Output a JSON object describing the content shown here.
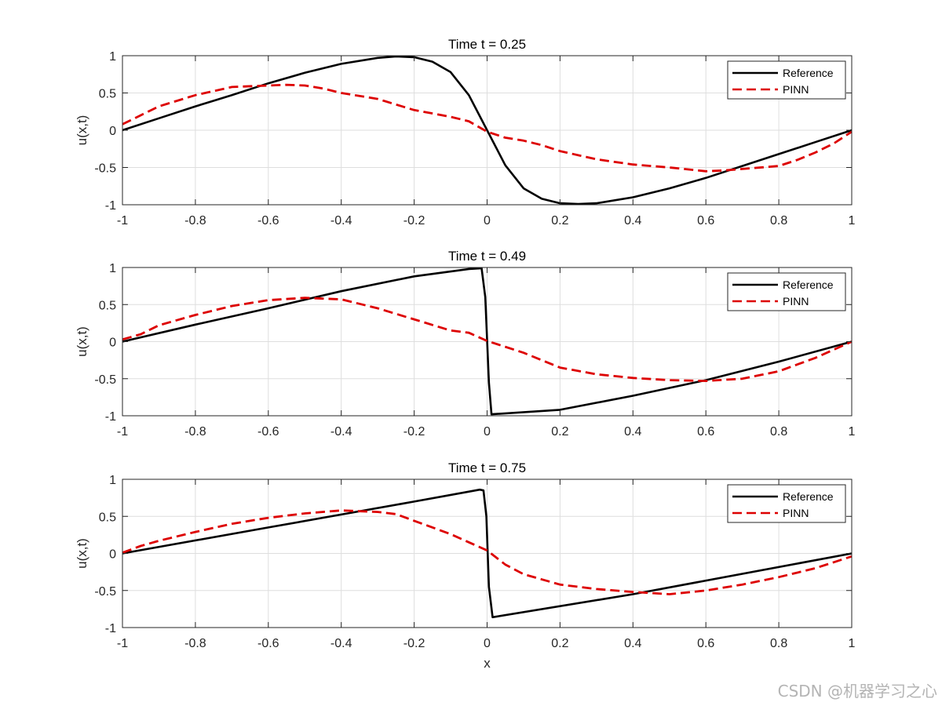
{
  "chart_data": [
    {
      "type": "line",
      "title": "Time t = 0.25",
      "xlabel": "",
      "ylabel": "u(x,t)",
      "xlim": [
        -1,
        1
      ],
      "ylim": [
        -1,
        1
      ],
      "xticks": [
        -1,
        -0.8,
        -0.6,
        -0.4,
        -0.2,
        0,
        0.2,
        0.4,
        0.6,
        0.8,
        1
      ],
      "xtick_labels": [
        "-1",
        "-0.8",
        "-0.6",
        "-0.4",
        "-0.2",
        "0",
        "0.2",
        "0.4",
        "0.6",
        "0.8",
        "1"
      ],
      "yticks": [
        -1,
        -0.5,
        0,
        0.5,
        1
      ],
      "ytick_labels": [
        "-1",
        "-0.5",
        "0",
        "0.5",
        "1"
      ],
      "grid": true,
      "legend_position": "top-right",
      "series": [
        {
          "name": "Reference",
          "color": "#000000",
          "dash": "solid",
          "x": [
            -1,
            -0.9,
            -0.8,
            -0.7,
            -0.6,
            -0.5,
            -0.4,
            -0.3,
            -0.25,
            -0.2,
            -0.15,
            -0.1,
            -0.05,
            0,
            0.05,
            0.1,
            0.15,
            0.2,
            0.25,
            0.3,
            0.4,
            0.5,
            0.6,
            0.7,
            0.8,
            0.9,
            1
          ],
          "y": [
            0,
            0.16,
            0.32,
            0.47,
            0.63,
            0.77,
            0.89,
            0.97,
            0.99,
            0.98,
            0.92,
            0.78,
            0.47,
            0,
            -0.47,
            -0.78,
            -0.92,
            -0.98,
            -0.99,
            -0.98,
            -0.9,
            -0.78,
            -0.64,
            -0.48,
            -0.32,
            -0.16,
            0
          ]
        },
        {
          "name": "PINN",
          "color": "#dd0000",
          "dash": "dashed",
          "x": [
            -1,
            -0.95,
            -0.9,
            -0.8,
            -0.7,
            -0.6,
            -0.55,
            -0.5,
            -0.45,
            -0.4,
            -0.3,
            -0.2,
            -0.1,
            -0.05,
            0,
            0.05,
            0.1,
            0.15,
            0.2,
            0.3,
            0.4,
            0.5,
            0.6,
            0.65,
            0.7,
            0.8,
            0.85,
            0.9,
            0.95,
            1
          ],
          "y": [
            0.08,
            0.2,
            0.32,
            0.47,
            0.58,
            0.6,
            0.61,
            0.6,
            0.56,
            0.5,
            0.42,
            0.27,
            0.18,
            0.12,
            -0.02,
            -0.1,
            -0.14,
            -0.2,
            -0.28,
            -0.39,
            -0.46,
            -0.5,
            -0.55,
            -0.54,
            -0.52,
            -0.48,
            -0.4,
            -0.3,
            -0.18,
            -0.02
          ]
        }
      ]
    },
    {
      "type": "line",
      "title": "Time t = 0.49",
      "xlabel": "",
      "ylabel": "u(x,t)",
      "xlim": [
        -1,
        1
      ],
      "ylim": [
        -1,
        1
      ],
      "xticks": [
        -1,
        -0.8,
        -0.6,
        -0.4,
        -0.2,
        0,
        0.2,
        0.4,
        0.6,
        0.8,
        1
      ],
      "xtick_labels": [
        "-1",
        "-0.8",
        "-0.6",
        "-0.4",
        "-0.2",
        "0",
        "0.2",
        "0.4",
        "0.6",
        "0.8",
        "1"
      ],
      "yticks": [
        -1,
        -0.5,
        0,
        0.5,
        1
      ],
      "ytick_labels": [
        "-1",
        "-0.5",
        "0",
        "0.5",
        "1"
      ],
      "grid": true,
      "legend_position": "top-right",
      "series": [
        {
          "name": "Reference",
          "color": "#000000",
          "dash": "solid",
          "x": [
            -1,
            -0.8,
            -0.6,
            -0.4,
            -0.2,
            -0.05,
            -0.015,
            -0.005,
            0.005,
            0.012,
            0.2,
            0.4,
            0.6,
            0.8,
            1
          ],
          "y": [
            0,
            0.23,
            0.45,
            0.68,
            0.88,
            0.98,
            0.99,
            0.6,
            -0.55,
            -0.98,
            -0.92,
            -0.73,
            -0.52,
            -0.27,
            0
          ]
        },
        {
          "name": "PINN",
          "color": "#dd0000",
          "dash": "dashed",
          "x": [
            -1,
            -0.95,
            -0.9,
            -0.8,
            -0.7,
            -0.6,
            -0.5,
            -0.4,
            -0.3,
            -0.2,
            -0.1,
            -0.05,
            0,
            0.1,
            0.2,
            0.3,
            0.4,
            0.5,
            0.6,
            0.7,
            0.8,
            0.9,
            1
          ],
          "y": [
            0.03,
            0.1,
            0.22,
            0.36,
            0.48,
            0.56,
            0.59,
            0.57,
            0.45,
            0.3,
            0.15,
            0.12,
            0.01,
            -0.15,
            -0.35,
            -0.44,
            -0.49,
            -0.52,
            -0.53,
            -0.5,
            -0.4,
            -0.22,
            0
          ]
        }
      ]
    },
    {
      "type": "line",
      "title": "Time t = 0.75",
      "xlabel": "x",
      "ylabel": "u(x,t)",
      "xlim": [
        -1,
        1
      ],
      "ylim": [
        -1,
        1
      ],
      "xticks": [
        -1,
        -0.8,
        -0.6,
        -0.4,
        -0.2,
        0,
        0.2,
        0.4,
        0.6,
        0.8,
        1
      ],
      "xtick_labels": [
        "-1",
        "-0.8",
        "-0.6",
        "-0.4",
        "-0.2",
        "0",
        "0.2",
        "0.4",
        "0.6",
        "0.8",
        "1"
      ],
      "yticks": [
        -1,
        -0.5,
        0,
        0.5,
        1
      ],
      "ytick_labels": [
        "-1",
        "-0.5",
        "0",
        "0.5",
        "1"
      ],
      "grid": true,
      "legend_position": "top-right",
      "series": [
        {
          "name": "Reference",
          "color": "#000000",
          "dash": "solid",
          "x": [
            -1,
            -0.6,
            -0.2,
            -0.02,
            -0.01,
            -0.002,
            0.005,
            0.015,
            0.4,
            1
          ],
          "y": [
            0,
            0.35,
            0.7,
            0.86,
            0.85,
            0.5,
            -0.45,
            -0.86,
            -0.55,
            0
          ]
        },
        {
          "name": "PINN",
          "color": "#dd0000",
          "dash": "dashed",
          "x": [
            -1,
            -0.95,
            -0.9,
            -0.8,
            -0.7,
            -0.6,
            -0.5,
            -0.4,
            -0.3,
            -0.25,
            -0.2,
            -0.1,
            0,
            0.05,
            0.1,
            0.2,
            0.3,
            0.4,
            0.5,
            0.6,
            0.7,
            0.8,
            0.9,
            1
          ],
          "y": [
            0.01,
            0.1,
            0.17,
            0.29,
            0.4,
            0.48,
            0.54,
            0.58,
            0.56,
            0.53,
            0.44,
            0.26,
            0.04,
            -0.15,
            -0.28,
            -0.42,
            -0.48,
            -0.52,
            -0.55,
            -0.5,
            -0.42,
            -0.32,
            -0.2,
            -0.04
          ]
        }
      ]
    }
  ],
  "watermark": "CSDN @机器学习之心"
}
